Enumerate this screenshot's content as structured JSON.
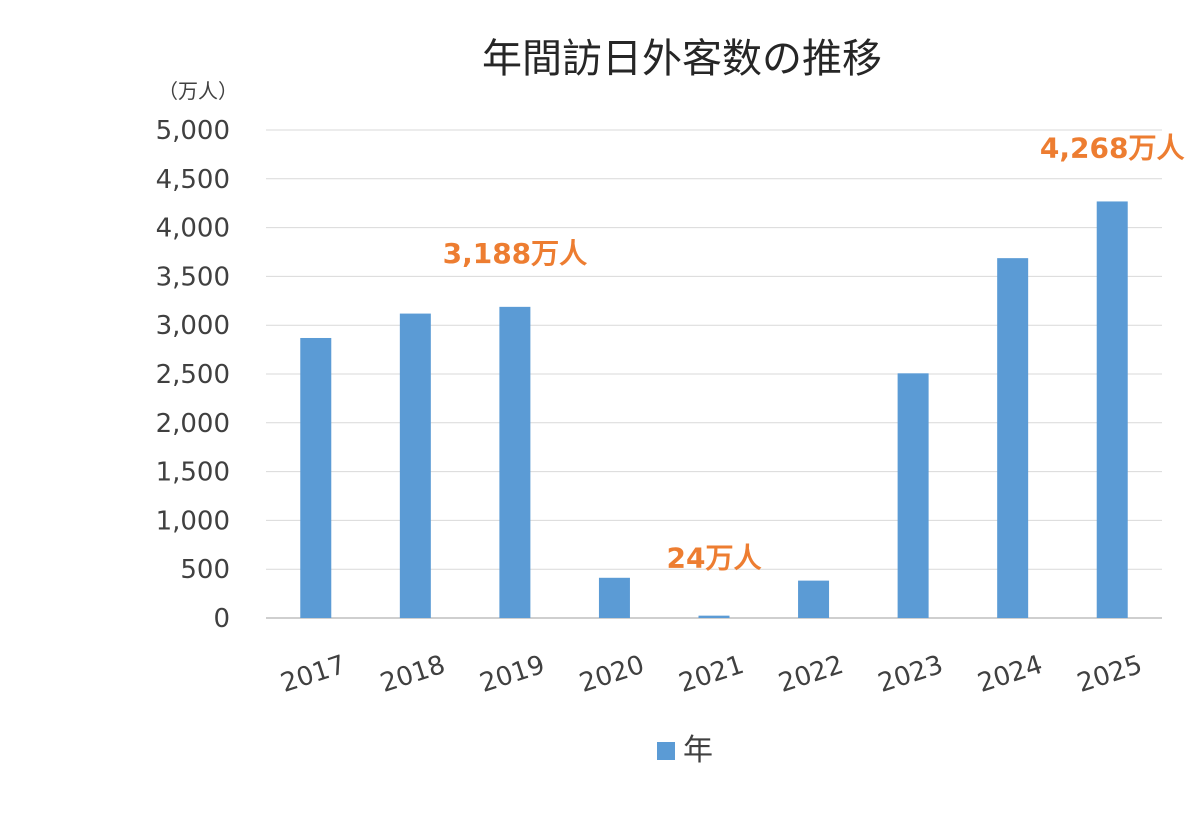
{
  "chart_data": {
    "type": "bar",
    "title": "年間訪日外客数の推移",
    "unit_label": "（万人）",
    "categories": [
      "2017",
      "2018",
      "2019",
      "2020",
      "2021",
      "2022",
      "2023",
      "2024",
      "2025"
    ],
    "series": [
      {
        "name": "年",
        "values": [
          2869,
          3119,
          3188,
          412,
          24,
          383,
          2507,
          3687,
          4268
        ]
      }
    ],
    "ylim": [
      0,
      5000
    ],
    "yticks": [
      0,
      500,
      1000,
      1500,
      2000,
      2500,
      3000,
      3500,
      4000,
      4500,
      5000
    ],
    "grid": true,
    "legend": "bottom",
    "annotations": [
      {
        "category": "2019",
        "text": "3,188万人"
      },
      {
        "category": "2021",
        "text": "24万人"
      },
      {
        "category": "2025",
        "text": "4,268万人"
      }
    ],
    "colors": {
      "bar": "#5b9bd5",
      "annotation": "#ed7d31",
      "grid": "#d9d9d9",
      "text": "#404040"
    }
  }
}
